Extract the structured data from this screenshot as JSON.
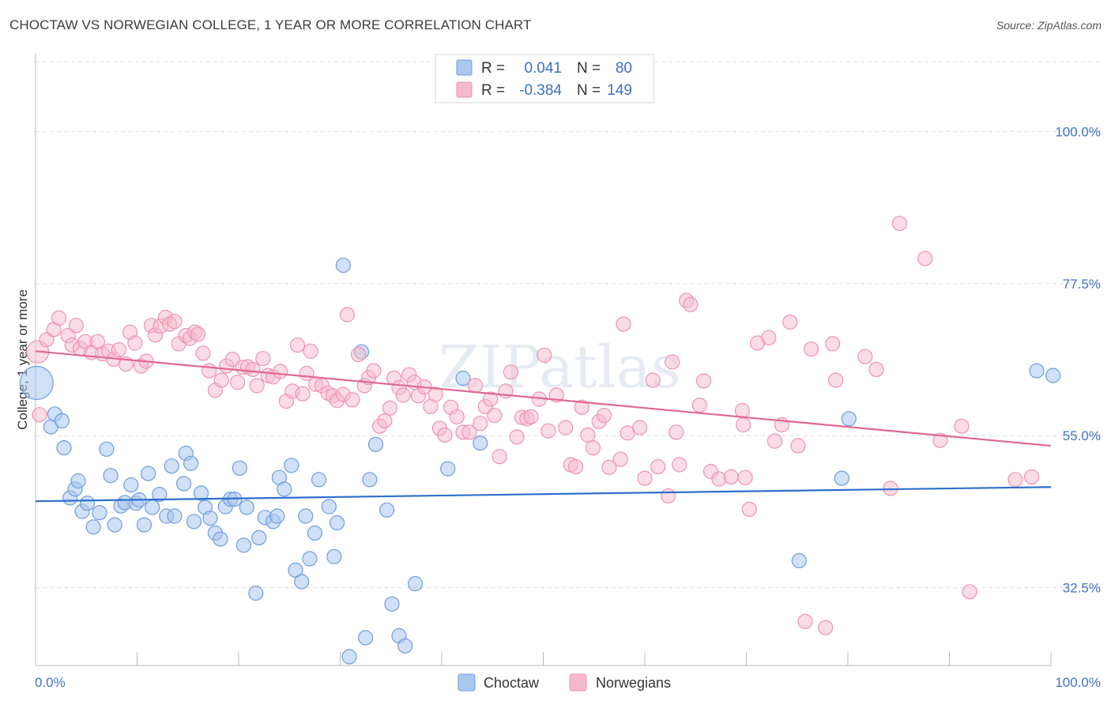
{
  "header": {
    "title": "CHOCTAW VS NORWEGIAN COLLEGE, 1 YEAR OR MORE CORRELATION CHART",
    "source": "Source: ZipAtlas.com"
  },
  "watermark": "ZIPatlas",
  "legend": {
    "rows": [
      {
        "r_label": "R =",
        "r_value": "0.041",
        "n_label": "N =",
        "n_value": "80"
      },
      {
        "r_label": "R =",
        "r_value": "-0.384",
        "n_label": "N =",
        "n_value": "149"
      }
    ]
  },
  "bottom_legend": [
    "Choctaw",
    "Norwegians"
  ],
  "colors": {
    "choctaw_fill": "#a9c7ef",
    "choctaw_stroke": "#6f9de0",
    "choctaw_line": "#2e6fcc",
    "norwegian_fill": "#f6b9cb",
    "norwegian_stroke": "#ee93b0",
    "norwegian_line": "#e0688f",
    "tick_text": "#4472c4"
  },
  "chart_data": {
    "type": "scatter",
    "title": "CHOCTAW VS NORWEGIAN COLLEGE, 1 YEAR OR MORE CORRELATION CHART",
    "xlabel": "",
    "ylabel": "College, 1 year or more",
    "xlim": [
      0,
      100
    ],
    "ylim": [
      21,
      111.5
    ],
    "x_tick_labels": [
      "0.0%",
      "100.0%"
    ],
    "y_ticks": [
      32.5,
      55.0,
      77.5,
      100.0
    ],
    "y_tick_labels": [
      "32.5%",
      "55.0%",
      "77.5%",
      "100.0%"
    ],
    "grid": true,
    "legend_position": "top-center",
    "series": [
      {
        "name": "Choctaw",
        "r": 0.041,
        "n": 80,
        "trend": [
          [
            0,
            45.3
          ],
          [
            100,
            47.4
          ]
        ],
        "points": [
          [
            0.1,
            62.8
          ],
          [
            1.5,
            56.3
          ],
          [
            1.9,
            58.2
          ],
          [
            2.6,
            57.2
          ],
          [
            2.8,
            53.2
          ],
          [
            3.4,
            45.8
          ],
          [
            3.9,
            47.1
          ],
          [
            4.2,
            48.3
          ],
          [
            4.6,
            43.8
          ],
          [
            5.1,
            45.0
          ],
          [
            5.7,
            41.5
          ],
          [
            6.3,
            43.6
          ],
          [
            7.0,
            53.0
          ],
          [
            7.4,
            49.1
          ],
          [
            7.8,
            41.8
          ],
          [
            8.4,
            44.6
          ],
          [
            8.8,
            45.1
          ],
          [
            9.4,
            47.7
          ],
          [
            9.9,
            45.0
          ],
          [
            10.2,
            45.5
          ],
          [
            10.7,
            41.8
          ],
          [
            11.1,
            49.4
          ],
          [
            11.5,
            44.4
          ],
          [
            12.2,
            46.3
          ],
          [
            12.9,
            43.1
          ],
          [
            13.4,
            50.5
          ],
          [
            13.7,
            43.1
          ],
          [
            14.6,
            47.9
          ],
          [
            14.8,
            52.4
          ],
          [
            15.3,
            50.9
          ],
          [
            15.6,
            42.3
          ],
          [
            16.3,
            46.5
          ],
          [
            16.7,
            44.4
          ],
          [
            17.2,
            42.8
          ],
          [
            17.7,
            40.6
          ],
          [
            18.2,
            39.7
          ],
          [
            18.7,
            44.5
          ],
          [
            19.2,
            45.6
          ],
          [
            19.6,
            45.6
          ],
          [
            20.1,
            50.2
          ],
          [
            20.5,
            38.8
          ],
          [
            20.8,
            44.4
          ],
          [
            21.7,
            31.7
          ],
          [
            22.0,
            39.9
          ],
          [
            22.6,
            42.9
          ],
          [
            23.4,
            42.3
          ],
          [
            23.8,
            43.1
          ],
          [
            24.0,
            48.8
          ],
          [
            24.5,
            47.1
          ],
          [
            25.2,
            50.6
          ],
          [
            25.6,
            35.1
          ],
          [
            26.2,
            33.4
          ],
          [
            26.6,
            43.1
          ],
          [
            27.0,
            36.8
          ],
          [
            27.5,
            40.6
          ],
          [
            27.9,
            48.5
          ],
          [
            28.9,
            44.5
          ],
          [
            29.4,
            37.1
          ],
          [
            29.7,
            42.1
          ],
          [
            30.3,
            80.2
          ],
          [
            30.9,
            22.3
          ],
          [
            32.1,
            67.4
          ],
          [
            32.5,
            25.1
          ],
          [
            32.9,
            48.5
          ],
          [
            33.5,
            53.7
          ],
          [
            34.6,
            44.0
          ],
          [
            35.1,
            30.1
          ],
          [
            35.8,
            25.4
          ],
          [
            36.4,
            23.9
          ],
          [
            37.4,
            33.1
          ],
          [
            40.6,
            50.1
          ],
          [
            42.1,
            63.5
          ],
          [
            43.8,
            53.9
          ],
          [
            75.2,
            36.5
          ],
          [
            79.4,
            48.7
          ],
          [
            80.1,
            57.5
          ],
          [
            98.6,
            64.6
          ],
          [
            100.2,
            63.9
          ]
        ]
      },
      {
        "name": "Norwegians",
        "r": -0.384,
        "n": 149,
        "trend": [
          [
            0,
            67.5
          ],
          [
            100,
            53.5
          ]
        ],
        "points": [
          [
            0.2,
            67.4
          ],
          [
            0.4,
            58.1
          ],
          [
            1.1,
            69.2
          ],
          [
            1.8,
            70.7
          ],
          [
            2.3,
            72.4
          ],
          [
            3.2,
            69.8
          ],
          [
            3.6,
            68.4
          ],
          [
            4.0,
            71.3
          ],
          [
            4.4,
            67.9
          ],
          [
            4.9,
            68.9
          ],
          [
            5.5,
            67.3
          ],
          [
            6.1,
            68.9
          ],
          [
            6.6,
            67.1
          ],
          [
            7.2,
            67.5
          ],
          [
            7.7,
            66.3
          ],
          [
            8.2,
            67.7
          ],
          [
            8.9,
            65.6
          ],
          [
            9.3,
            70.3
          ],
          [
            9.8,
            68.7
          ],
          [
            10.4,
            65.3
          ],
          [
            10.9,
            66.0
          ],
          [
            11.4,
            71.3
          ],
          [
            11.8,
            69.9
          ],
          [
            12.3,
            71.2
          ],
          [
            12.8,
            72.5
          ],
          [
            13.2,
            71.5
          ],
          [
            13.7,
            71.9
          ],
          [
            14.1,
            68.6
          ],
          [
            14.8,
            69.8
          ],
          [
            15.2,
            69.4
          ],
          [
            15.7,
            70.3
          ],
          [
            16.0,
            70.0
          ],
          [
            16.5,
            67.2
          ],
          [
            17.1,
            64.6
          ],
          [
            17.7,
            61.7
          ],
          [
            18.3,
            63.2
          ],
          [
            18.8,
            65.3
          ],
          [
            19.4,
            66.3
          ],
          [
            19.9,
            62.9
          ],
          [
            20.4,
            65.1
          ],
          [
            20.9,
            65.2
          ],
          [
            21.4,
            64.8
          ],
          [
            21.8,
            62.4
          ],
          [
            22.4,
            66.4
          ],
          [
            22.9,
            63.9
          ],
          [
            23.4,
            63.7
          ],
          [
            24.1,
            64.5
          ],
          [
            24.7,
            60.1
          ],
          [
            25.3,
            61.6
          ],
          [
            25.8,
            68.4
          ],
          [
            26.3,
            61.2
          ],
          [
            26.7,
            64.2
          ],
          [
            27.1,
            67.5
          ],
          [
            27.6,
            62.6
          ],
          [
            28.2,
            62.4
          ],
          [
            28.8,
            61.3
          ],
          [
            29.3,
            60.9
          ],
          [
            29.7,
            60.2
          ],
          [
            30.3,
            61.1
          ],
          [
            30.7,
            72.9
          ],
          [
            31.2,
            60.3
          ],
          [
            31.8,
            67.0
          ],
          [
            32.4,
            62.4
          ],
          [
            32.8,
            63.6
          ],
          [
            33.3,
            64.6
          ],
          [
            33.9,
            56.4
          ],
          [
            34.4,
            57.2
          ],
          [
            34.9,
            59.1
          ],
          [
            35.3,
            63.5
          ],
          [
            35.8,
            62.1
          ],
          [
            36.2,
            61.0
          ],
          [
            36.8,
            64.0
          ],
          [
            37.3,
            62.9
          ],
          [
            37.7,
            60.9
          ],
          [
            38.3,
            62.2
          ],
          [
            38.9,
            59.3
          ],
          [
            39.4,
            61.1
          ],
          [
            39.8,
            56.1
          ],
          [
            40.3,
            55.1
          ],
          [
            40.9,
            59.2
          ],
          [
            41.5,
            57.8
          ],
          [
            42.1,
            55.5
          ],
          [
            42.7,
            55.5
          ],
          [
            43.3,
            62.4
          ],
          [
            43.8,
            56.8
          ],
          [
            44.3,
            59.3
          ],
          [
            44.8,
            60.4
          ],
          [
            45.2,
            58.0
          ],
          [
            45.7,
            51.9
          ],
          [
            46.3,
            61.6
          ],
          [
            46.8,
            64.4
          ],
          [
            47.4,
            54.8
          ],
          [
            47.9,
            57.7
          ],
          [
            48.4,
            57.5
          ],
          [
            48.8,
            57.8
          ],
          [
            49.6,
            60.4
          ],
          [
            50.1,
            66.9
          ],
          [
            50.5,
            55.7
          ],
          [
            51.3,
            61.0
          ],
          [
            52.2,
            56.2
          ],
          [
            52.7,
            50.7
          ],
          [
            53.2,
            50.4
          ],
          [
            53.8,
            59.2
          ],
          [
            54.4,
            55.1
          ],
          [
            54.9,
            53.2
          ],
          [
            55.5,
            57.1
          ],
          [
            56.0,
            58.0
          ],
          [
            56.5,
            50.3
          ],
          [
            57.6,
            51.5
          ],
          [
            57.9,
            71.5
          ],
          [
            58.3,
            55.4
          ],
          [
            59.5,
            56.2
          ],
          [
            60.0,
            48.7
          ],
          [
            60.8,
            63.2
          ],
          [
            61.3,
            50.4
          ],
          [
            62.3,
            46.1
          ],
          [
            62.7,
            65.9
          ],
          [
            63.1,
            55.5
          ],
          [
            63.4,
            50.7
          ],
          [
            64.1,
            75.0
          ],
          [
            64.5,
            74.4
          ],
          [
            65.4,
            59.5
          ],
          [
            65.8,
            63.1
          ],
          [
            66.5,
            49.7
          ],
          [
            67.3,
            48.6
          ],
          [
            68.5,
            48.9
          ],
          [
            69.6,
            58.7
          ],
          [
            69.7,
            56.6
          ],
          [
            69.9,
            48.8
          ],
          [
            70.3,
            44.1
          ],
          [
            71.1,
            68.7
          ],
          [
            72.2,
            69.5
          ],
          [
            72.8,
            54.2
          ],
          [
            73.5,
            56.6
          ],
          [
            74.3,
            71.8
          ],
          [
            75.1,
            53.5
          ],
          [
            75.8,
            27.5
          ],
          [
            76.4,
            67.8
          ],
          [
            77.8,
            26.6
          ],
          [
            78.5,
            68.6
          ],
          [
            78.8,
            63.2
          ],
          [
            81.7,
            66.7
          ],
          [
            82.8,
            64.8
          ],
          [
            84.2,
            47.2
          ],
          [
            85.1,
            86.4
          ],
          [
            87.6,
            81.2
          ],
          [
            89.1,
            54.3
          ],
          [
            91.2,
            56.4
          ],
          [
            92.0,
            31.9
          ],
          [
            96.5,
            48.5
          ],
          [
            98.1,
            48.9
          ]
        ]
      }
    ]
  }
}
